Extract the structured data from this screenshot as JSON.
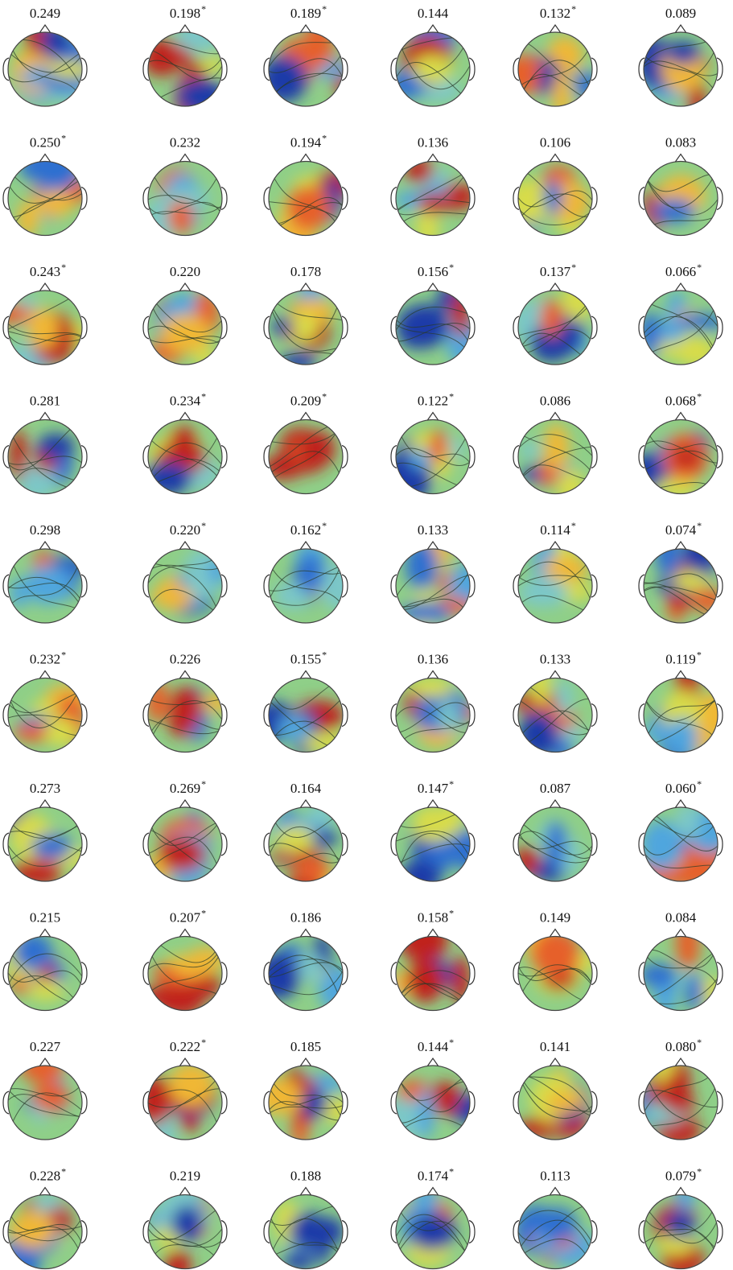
{
  "figure": {
    "rows": [
      [
        {
          "value": "0.249"
        },
        {
          "value": "0.198",
          "sup": "*"
        },
        {
          "value": "0.189",
          "sup": "*"
        },
        {
          "value": "0.144"
        },
        {
          "value": "0.132",
          "sup": "*"
        },
        {
          "value": "0.089"
        }
      ],
      [
        {
          "value": "0.250",
          "sup": "*"
        },
        {
          "value": "0.232"
        },
        {
          "value": "0.194",
          "sup": "*"
        },
        {
          "value": "0.136"
        },
        {
          "value": "0.106"
        },
        {
          "value": "0.083"
        }
      ],
      [
        {
          "value": "0.243",
          "sup": "*"
        },
        {
          "value": "0.220"
        },
        {
          "value": "0.178"
        },
        {
          "value": "0.156",
          "sup": "*"
        },
        {
          "value": "0.137",
          "sup": "*"
        },
        {
          "value": "0.066",
          "sup": "*"
        }
      ],
      [
        {
          "value": "0.281"
        },
        {
          "value": "0.234",
          "sup": "*"
        },
        {
          "value": "0.209",
          "sup": "*"
        },
        {
          "value": "0.122",
          "sup": "*"
        },
        {
          "value": "0.086"
        },
        {
          "value": "0.068",
          "sup": "*"
        }
      ],
      [
        {
          "value": "0.298"
        },
        {
          "value": "0.220",
          "sup": "*"
        },
        {
          "value": "0.162",
          "sup": "*"
        },
        {
          "value": "0.133"
        },
        {
          "value": "0.114",
          "sup": "*"
        },
        {
          "value": "0.074",
          "sup": "*"
        }
      ],
      [
        {
          "value": "0.232",
          "sup": "*"
        },
        {
          "value": "0.226"
        },
        {
          "value": "0.155",
          "sup": "*"
        },
        {
          "value": "0.136"
        },
        {
          "value": "0.133"
        },
        {
          "value": "0.119",
          "sup": "*"
        }
      ],
      [
        {
          "value": "0.273"
        },
        {
          "value": "0.269",
          "sup": "*"
        },
        {
          "value": "0.164"
        },
        {
          "value": "0.147",
          "sup": "*"
        },
        {
          "value": "0.087"
        },
        {
          "value": "0.060",
          "sup": "*"
        }
      ],
      [
        {
          "value": "0.215"
        },
        {
          "value": "0.207",
          "sup": "*"
        },
        {
          "value": "0.186"
        },
        {
          "value": "0.158",
          "sup": "*"
        },
        {
          "value": "0.149"
        },
        {
          "value": "0.084"
        }
      ],
      [
        {
          "value": "0.227"
        },
        {
          "value": "0.222",
          "sup": "*"
        },
        {
          "value": "0.185"
        },
        {
          "value": "0.144",
          "sup": "*"
        },
        {
          "value": "0.141"
        },
        {
          "value": "0.080",
          "sup": "*"
        }
      ],
      [
        {
          "value": "0.228",
          "sup": "*"
        },
        {
          "value": "0.219"
        },
        {
          "value": "0.188"
        },
        {
          "value": "0.174",
          "sup": "*"
        },
        {
          "value": "0.113"
        },
        {
          "value": "0.079",
          "sup": "*"
        }
      ]
    ]
  }
}
